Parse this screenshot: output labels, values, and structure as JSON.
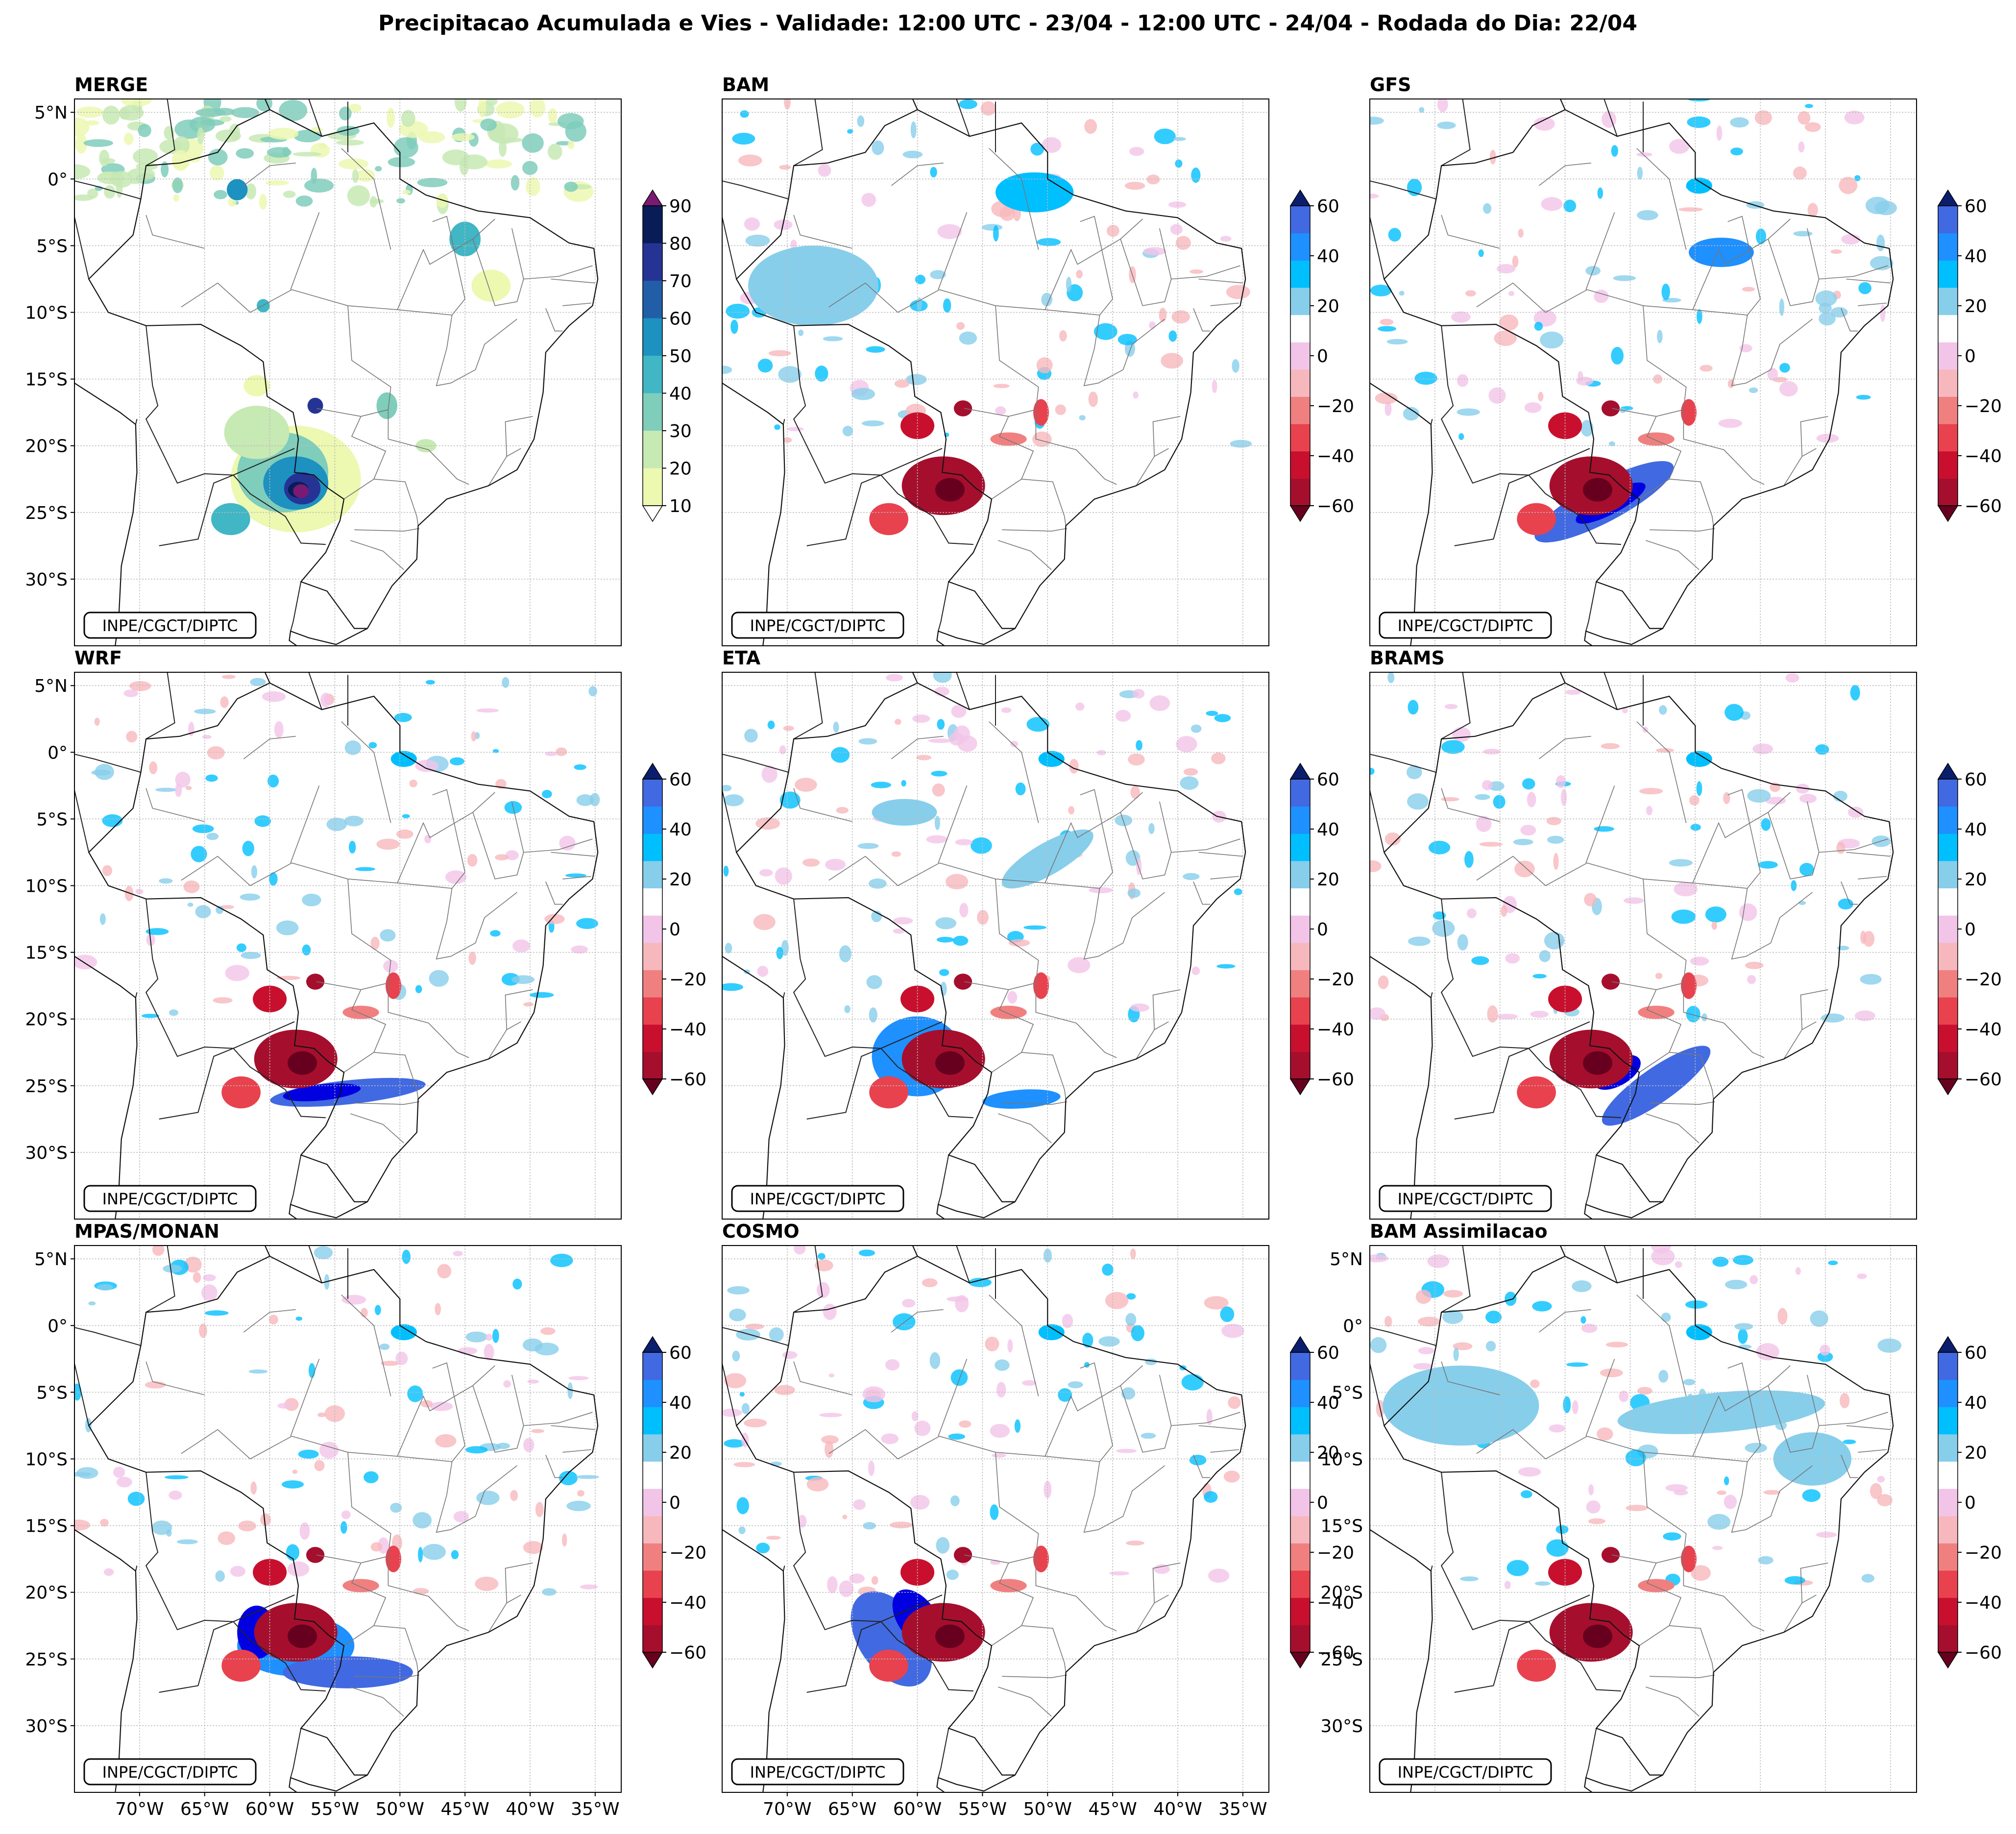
{
  "figure": {
    "title": "Precipitacao Acumulada e Vies - Validade: 12:00 UTC - 23/04 - 12:00 UTC - 24/04 - Rodada do Dia: 22/04",
    "credit": "INPE/CGCT/DIPTC"
  },
  "chart_data": {
    "type": "heatmap",
    "title": "Precipitacao Acumulada e Vies - Validade: 12:00 UTC - 23/04 - 12:00 UTC - 24/04 - Rodada do Dia: 22/04",
    "lon_range": [
      -75,
      -33
    ],
    "lat_range": [
      -35,
      6
    ],
    "lon_ticks": [
      -70,
      -65,
      -60,
      -55,
      -50,
      -45,
      -40,
      -35
    ],
    "lat_ticks": [
      5,
      0,
      -5,
      -10,
      -15,
      -20,
      -25,
      -30
    ],
    "lon_tick_labels": [
      "70°W",
      "65°W",
      "60°W",
      "55°W",
      "50°W",
      "45°W",
      "40°W",
      "35°W"
    ],
    "lat_tick_labels": [
      "5°N",
      "0°",
      "5°S",
      "10°S",
      "15°S",
      "20°S",
      "25°S",
      "30°S"
    ],
    "precip_colorbar": {
      "ticks": [
        90,
        80,
        70,
        60,
        50,
        40,
        30,
        20,
        10
      ],
      "levels": [
        10,
        20,
        30,
        40,
        50,
        60,
        70,
        80,
        90
      ],
      "colors": [
        "#edf8b1",
        "#c7e9b4",
        "#7fcdbb",
        "#41b6c4",
        "#1d91c0",
        "#225ea8",
        "#253494",
        "#081d58"
      ],
      "over_color": "#7a1a73",
      "under_color": "#ffffff"
    },
    "bias_colorbar": {
      "ticks": [
        60,
        40,
        20,
        0,
        -20,
        -40,
        -60
      ],
      "levels": [
        -60,
        -50,
        -40,
        -30,
        -20,
        -10,
        10,
        20,
        30,
        40,
        50,
        60
      ],
      "colors": [
        "#a50f2d",
        "#c8102e",
        "#e8424f",
        "#f08080",
        "#f7b8bd",
        "#f2c4e8",
        "#ffffff",
        "#87ceeb",
        "#00bfff",
        "#1e90ff",
        "#4169e1",
        "#0000e0"
      ],
      "under_color": "#67001f",
      "over_color": "#0b1e6e"
    },
    "panels": [
      {
        "name": "MERGE",
        "kind": "precip"
      },
      {
        "name": "BAM",
        "kind": "bias"
      },
      {
        "name": "GFS",
        "kind": "bias"
      },
      {
        "name": "WRF",
        "kind": "bias"
      },
      {
        "name": "ETA",
        "kind": "bias"
      },
      {
        "name": "BRAMS",
        "kind": "bias"
      },
      {
        "name": "MPAS/MONAN",
        "kind": "bias"
      },
      {
        "name": "COSMO",
        "kind": "bias"
      },
      {
        "name": "BAM Assimilacao",
        "kind": "bias"
      }
    ]
  }
}
